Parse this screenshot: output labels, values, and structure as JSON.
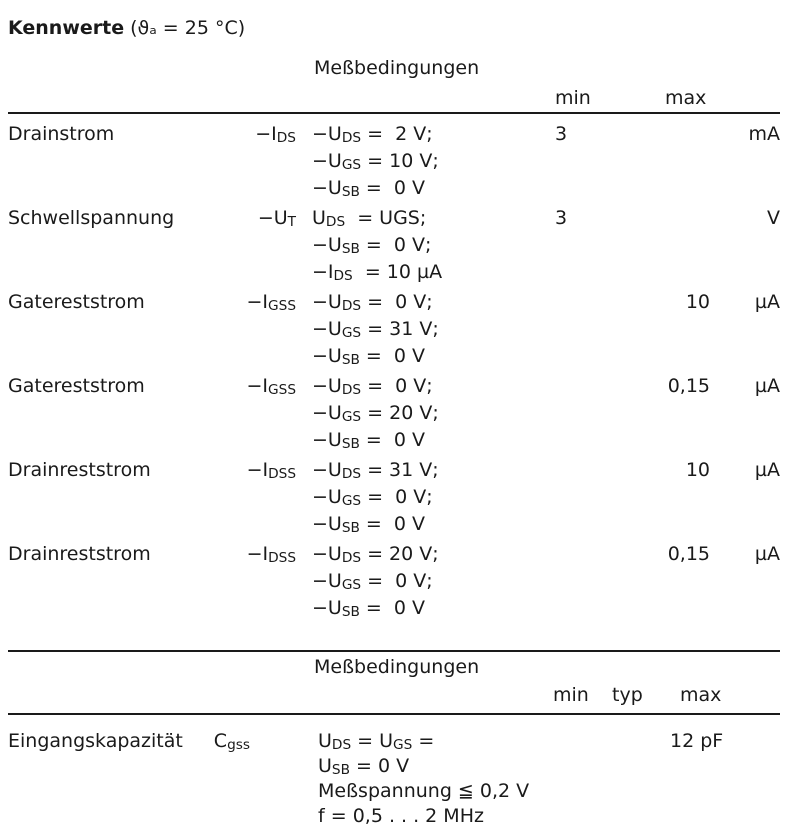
{
  "title": {
    "bold": "Kennwerte",
    "rest": " (ϑₐ = 25 °C)"
  },
  "table1": {
    "conditions_header": "Meßbedingungen",
    "min_header": "min",
    "max_header": "max",
    "rows": [
      {
        "name": "Drainstrom",
        "symbol": {
          "pre": "−I",
          "sub": "DS"
        },
        "conditions": [
          {
            "pre": "−U",
            "sub": "DS",
            "post": " =  2 V;"
          },
          {
            "pre": "−U",
            "sub": "GS",
            "post": " = 10 V;"
          },
          {
            "pre": "−U",
            "sub": "SB",
            "post": " =  0 V"
          }
        ],
        "min": "3",
        "max": "",
        "unit": "mA"
      },
      {
        "name": "Schwellspannung",
        "symbol": {
          "pre": "−U",
          "sub": "T"
        },
        "conditions": [
          {
            "pre": "U",
            "sub": "DS",
            "post": "  = UGS;"
          },
          {
            "pre": "−U",
            "sub": "SB",
            "post": " =  0 V;"
          },
          {
            "pre": "−I",
            "sub": "DS",
            "post": "  = 10 µA"
          }
        ],
        "min": "3",
        "max": "",
        "unit": "V"
      },
      {
        "name": "Gatereststrom",
        "symbol": {
          "pre": "−I",
          "sub": "GSS"
        },
        "conditions": [
          {
            "pre": "−U",
            "sub": "DS",
            "post": " =  0 V;"
          },
          {
            "pre": "−U",
            "sub": "GS",
            "post": " = 31 V;"
          },
          {
            "pre": "−U",
            "sub": "SB",
            "post": " =  0 V"
          }
        ],
        "min": "",
        "max": "10",
        "unit": "µA"
      },
      {
        "name": "Gatereststrom",
        "symbol": {
          "pre": "−I",
          "sub": "GSS"
        },
        "conditions": [
          {
            "pre": "−U",
            "sub": "DS",
            "post": " =  0 V;"
          },
          {
            "pre": "−U",
            "sub": "GS",
            "post": " = 20 V;"
          },
          {
            "pre": "−U",
            "sub": "SB",
            "post": " =  0 V"
          }
        ],
        "min": "",
        "max": "0,15",
        "unit": "µA"
      },
      {
        "name": "Drainreststrom",
        "symbol": {
          "pre": "−I",
          "sub": "DSS"
        },
        "conditions": [
          {
            "pre": "−U",
            "sub": "DS",
            "post": " = 31 V;"
          },
          {
            "pre": "−U",
            "sub": "GS",
            "post": " =  0 V;"
          },
          {
            "pre": "−U",
            "sub": "SB",
            "post": " =  0 V"
          }
        ],
        "min": "",
        "max": "10",
        "unit": "µA"
      },
      {
        "name": "Drainreststrom",
        "symbol": {
          "pre": "−I",
          "sub": "DSS"
        },
        "conditions": [
          {
            "pre": "−U",
            "sub": "DS",
            "post": " = 20 V;"
          },
          {
            "pre": "−U",
            "sub": "GS",
            "post": " =  0 V;"
          },
          {
            "pre": "−U",
            "sub": "SB",
            "post": " =  0 V"
          }
        ],
        "min": "",
        "max": "0,15",
        "unit": "µA"
      }
    ]
  },
  "table2": {
    "conditions_header": "Meßbedingungen",
    "min_header": "min",
    "typ_header": "typ",
    "max_header": "max",
    "row": {
      "name": "Eingangskapazität",
      "symbol": {
        "pre": "C",
        "sub": "gss"
      },
      "conditions": [
        {
          "pre": "U",
          "sub": "DS",
          "post": " = U"
        },
        {
          "pre": "U",
          "sub": "SB",
          "post": " = 0 V"
        },
        {
          "pre": "Meßspannung ≦ 0,2 V",
          "sub": "",
          "post": ""
        },
        {
          "pre": "f = 0,5 . . . 2 MHz",
          "sub": "",
          "post": ""
        }
      ],
      "max": "12 pF"
    }
  }
}
